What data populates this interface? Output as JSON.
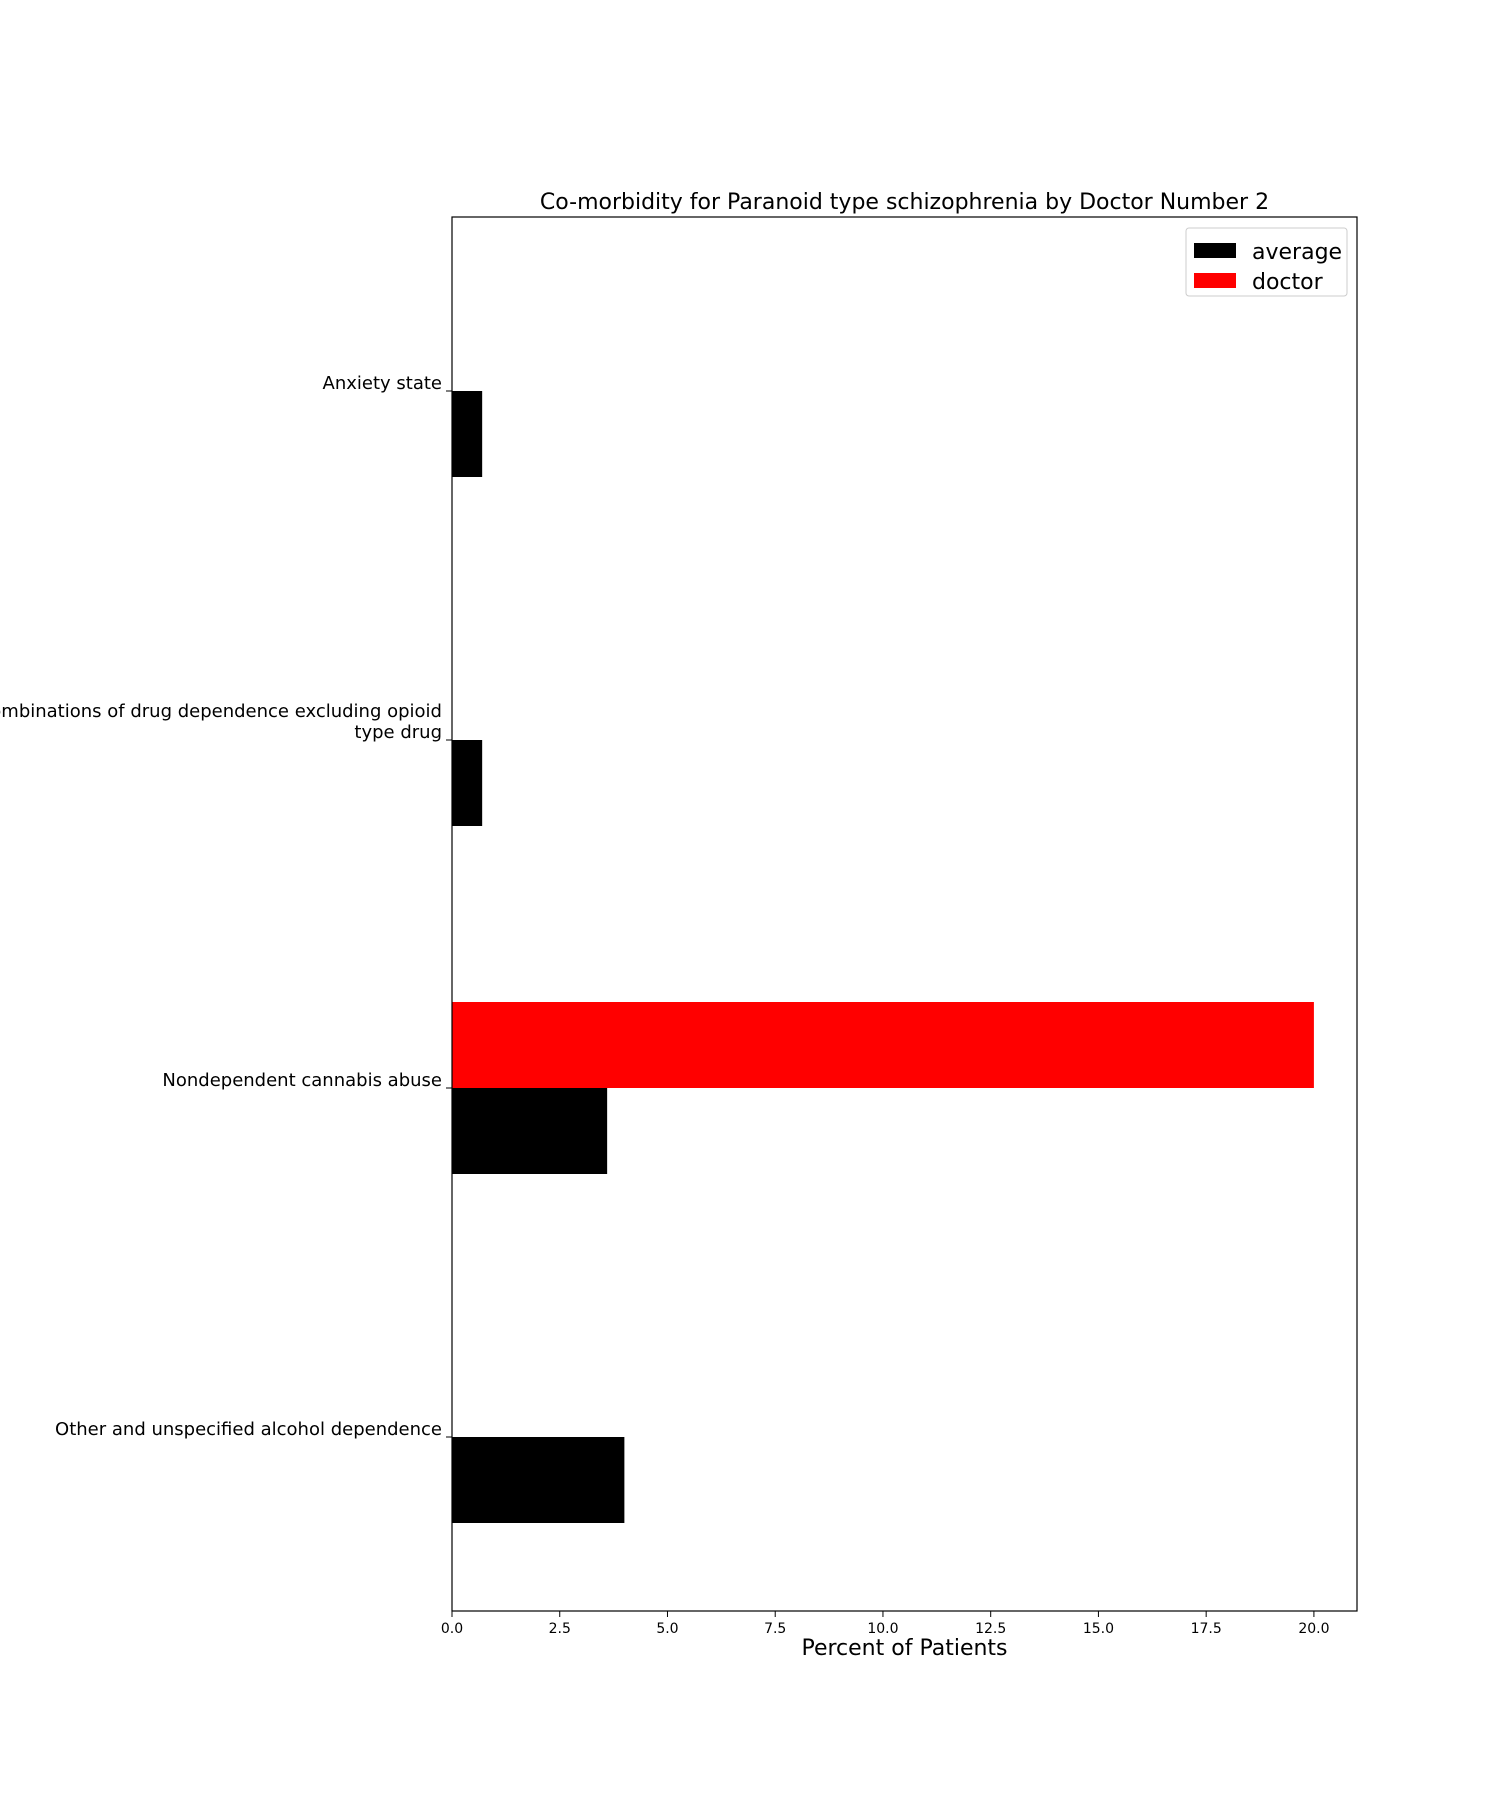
{
  "chart_data": {
    "type": "bar",
    "orientation": "horizontal",
    "title": "Co-morbidity for Paranoid type schizophrenia by Doctor Number 2",
    "xlabel": "Percent of Patients",
    "ylabel": "",
    "xlim": [
      0,
      21
    ],
    "x_ticks": [
      0.0,
      2.5,
      5.0,
      7.5,
      10.0,
      12.5,
      15.0,
      17.5,
      20.0
    ],
    "x_tick_labels": [
      "0.0",
      "2.5",
      "5.0",
      "7.5",
      "10.0",
      "12.5",
      "15.0",
      "17.5",
      "20.0"
    ],
    "categories": [
      [
        "Anxiety state"
      ],
      [
        "Combinations of drug dependence excluding opioid",
        "type drug"
      ],
      [
        "Nondependent cannabis abuse"
      ],
      [
        "Other and unspecified alcohol dependence"
      ]
    ],
    "series": [
      {
        "name": "average",
        "color": "#000000",
        "values": [
          0.7,
          0.7,
          3.6,
          4.0
        ]
      },
      {
        "name": "doctor",
        "color": "#ff0000",
        "values": [
          0,
          0,
          20.0,
          0
        ]
      }
    ],
    "legend_position": "top-right",
    "grid": false
  }
}
